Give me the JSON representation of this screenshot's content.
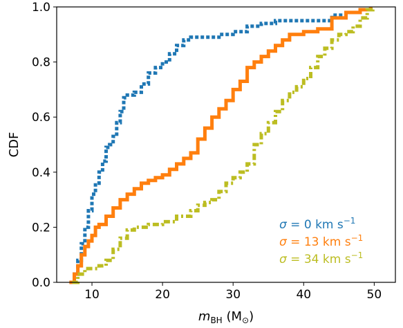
{
  "chart_data": {
    "type": "line",
    "title": "",
    "xlabel": {
      "base": "m",
      "sub": "BH",
      "unit_open": " (M",
      "unit_sub": "⊙",
      "unit_close": ")"
    },
    "ylabel": "CDF",
    "xlim": [
      5,
      53
    ],
    "ylim": [
      0,
      1
    ],
    "xticks": [
      10,
      20,
      30,
      40,
      50
    ],
    "xtick_labels": [
      "10",
      "20",
      "30",
      "40",
      "50"
    ],
    "yticks": [
      0.0,
      0.2,
      0.4,
      0.6,
      0.8,
      1.0
    ],
    "ytick_labels": [
      "0.0",
      "0.2",
      "0.4",
      "0.6",
      "0.8",
      "1.0"
    ],
    "grid": false,
    "legend_position": "lower-right",
    "series": [
      {
        "name": "σ = 0 km s⁻¹",
        "legend": {
          "sym": "σ",
          "eq": " = ",
          "num": "0",
          "unit": " km s",
          "sup": "−1"
        },
        "color": "#1f77b4",
        "style": "dotted",
        "x": [
          6.8,
          7.5,
          8.0,
          8.5,
          9.0,
          9.5,
          10.0,
          10.5,
          11.0,
          11.5,
          12.0,
          12.5,
          13.0,
          13.5,
          14.0,
          14.5,
          15.0,
          16.0,
          17.0,
          18.0,
          19.0,
          20.0,
          21.0,
          22.0,
          23.0,
          24.0,
          26.0,
          28.0,
          30.0,
          32.0,
          34.0,
          36.0,
          40.0,
          44.0,
          46.0,
          48.0,
          49.5
        ],
        "y": [
          0.0,
          0.03,
          0.08,
          0.14,
          0.2,
          0.26,
          0.32,
          0.36,
          0.4,
          0.44,
          0.49,
          0.5,
          0.53,
          0.58,
          0.62,
          0.67,
          0.68,
          0.69,
          0.72,
          0.76,
          0.78,
          0.8,
          0.83,
          0.86,
          0.88,
          0.89,
          0.89,
          0.9,
          0.91,
          0.93,
          0.94,
          0.95,
          0.95,
          0.97,
          0.98,
          0.99,
          1.0
        ]
      },
      {
        "name": "σ = 13 km s⁻¹",
        "legend": {
          "sym": "σ",
          "eq": " = ",
          "num": "13",
          "unit": " km s",
          "sup": "−1"
        },
        "color": "#ff7f0e",
        "style": "solid",
        "x": [
          6.8,
          7.5,
          8.0,
          8.5,
          9.0,
          9.5,
          10.0,
          10.5,
          11.0,
          12.0,
          13.0,
          14.0,
          15.0,
          16.0,
          17.0,
          18.0,
          19.0,
          20.0,
          21.0,
          22.0,
          23.0,
          24.0,
          25.0,
          26.0,
          27.0,
          28.0,
          29.0,
          30.0,
          31.0,
          32.0,
          33.0,
          34.0,
          35.0,
          36.0,
          37.0,
          38.0,
          40.0,
          42.0,
          44.0,
          46.0,
          48.0,
          49.5
        ],
        "y": [
          0.0,
          0.03,
          0.06,
          0.1,
          0.13,
          0.15,
          0.17,
          0.2,
          0.21,
          0.24,
          0.27,
          0.3,
          0.32,
          0.34,
          0.36,
          0.37,
          0.38,
          0.39,
          0.41,
          0.43,
          0.45,
          0.47,
          0.52,
          0.56,
          0.6,
          0.63,
          0.66,
          0.7,
          0.73,
          0.78,
          0.8,
          0.82,
          0.84,
          0.86,
          0.88,
          0.9,
          0.91,
          0.92,
          0.96,
          0.98,
          0.99,
          1.0
        ]
      },
      {
        "name": "σ = 34 km s⁻¹",
        "legend": {
          "sym": "σ",
          "eq": " = ",
          "num": "34",
          "unit": " km s",
          "sup": "−1"
        },
        "color": "#bcbd22",
        "style": "dashdot",
        "x": [
          7.2,
          8.0,
          9.0,
          10.0,
          11.0,
          12.0,
          13.0,
          14.0,
          15.0,
          16.0,
          18.0,
          20.0,
          22.0,
          24.0,
          25.0,
          26.0,
          27.0,
          28.0,
          29.0,
          30.0,
          31.0,
          32.0,
          33.0,
          34.0,
          35.0,
          36.0,
          37.0,
          38.0,
          39.0,
          40.0,
          41.0,
          42.0,
          43.0,
          44.0,
          45.0,
          46.0,
          47.0,
          48.0,
          49.0,
          49.8
        ],
        "y": [
          0.0,
          0.03,
          0.05,
          0.05,
          0.06,
          0.08,
          0.12,
          0.16,
          0.19,
          0.2,
          0.21,
          0.22,
          0.24,
          0.26,
          0.28,
          0.29,
          0.3,
          0.33,
          0.36,
          0.38,
          0.4,
          0.43,
          0.5,
          0.54,
          0.58,
          0.62,
          0.66,
          0.69,
          0.71,
          0.74,
          0.78,
          0.82,
          0.85,
          0.88,
          0.9,
          0.91,
          0.93,
          0.96,
          0.99,
          1.0
        ]
      }
    ]
  }
}
